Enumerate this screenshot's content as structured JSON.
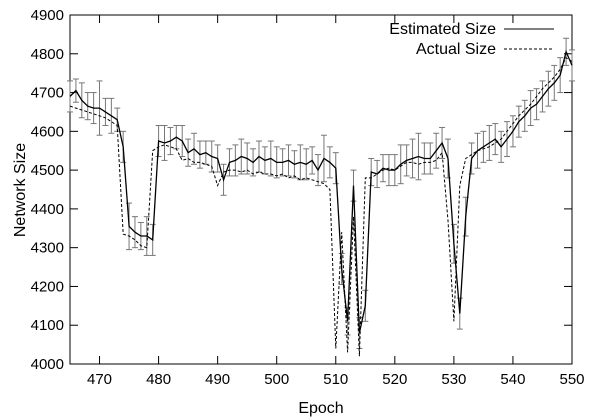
{
  "chart_data": {
    "type": "line",
    "title": "",
    "xlabel": "Epoch",
    "ylabel": "Network Size",
    "xlim": [
      465,
      550
    ],
    "ylim": [
      4000,
      4900
    ],
    "xticks": [
      470,
      480,
      490,
      500,
      510,
      520,
      530,
      540,
      550
    ],
    "yticks": [
      4000,
      4100,
      4200,
      4300,
      4400,
      4500,
      4600,
      4700,
      4800,
      4900
    ],
    "grid": false,
    "legend_position": "top-right",
    "series": [
      {
        "name": "Estimated Size",
        "style": "solid",
        "color": "#000000",
        "error_bars": true,
        "x": [
          465,
          466,
          467,
          468,
          469,
          470,
          471,
          472,
          473,
          474,
          475,
          476,
          477,
          478,
          479,
          480,
          481,
          482,
          483,
          484,
          485,
          486,
          487,
          488,
          489,
          490,
          491,
          492,
          493,
          494,
          495,
          496,
          497,
          498,
          499,
          500,
          501,
          502,
          503,
          504,
          505,
          506,
          507,
          508,
          509,
          510,
          511,
          512,
          513,
          514,
          515,
          516,
          517,
          518,
          519,
          520,
          521,
          522,
          523,
          524,
          525,
          526,
          527,
          528,
          529,
          530,
          531,
          532,
          533,
          534,
          535,
          536,
          537,
          538,
          539,
          540,
          541,
          542,
          543,
          544,
          545,
          546,
          547,
          548,
          549,
          550
        ],
        "y": [
          4690,
          4705,
          4680,
          4665,
          4660,
          4660,
          4650,
          4640,
          4630,
          4560,
          4355,
          4340,
          4330,
          4330,
          4320,
          4575,
          4570,
          4575,
          4585,
          4575,
          4545,
          4555,
          4540,
          4545,
          4535,
          4530,
          4475,
          4520,
          4525,
          4535,
          4530,
          4520,
          4535,
          4525,
          4530,
          4520,
          4520,
          4525,
          4515,
          4520,
          4515,
          4525,
          4500,
          4530,
          4520,
          4505,
          4245,
          4110,
          4460,
          4080,
          4150,
          4495,
          4490,
          4505,
          4500,
          4500,
          4515,
          4525,
          4530,
          4535,
          4530,
          4530,
          4550,
          4570,
          4530,
          4310,
          4130,
          4380,
          4530,
          4550,
          4560,
          4570,
          4580,
          4560,
          4580,
          4600,
          4625,
          4640,
          4660,
          4670,
          4690,
          4710,
          4725,
          4745,
          4805,
          4770
        ],
        "err": [
          40,
          30,
          45,
          35,
          40,
          70,
          35,
          45,
          30,
          40,
          60,
          40,
          35,
          50,
          40,
          40,
          45,
          35,
          30,
          40,
          35,
          40,
          35,
          30,
          40,
          35,
          40,
          35,
          40,
          45,
          40,
          35,
          40,
          35,
          45,
          40,
          35,
          40,
          35,
          45,
          40,
          35,
          40,
          60,
          40,
          40,
          40,
          35,
          40,
          40,
          40,
          35,
          35,
          35,
          40,
          40,
          50,
          40,
          50,
          60,
          40,
          40,
          45,
          40,
          50,
          50,
          40,
          50,
          40,
          45,
          40,
          45,
          40,
          40,
          45,
          40,
          40,
          40,
          45,
          40,
          40,
          45,
          45,
          45,
          35,
          40
        ]
      },
      {
        "name": "Actual Size",
        "style": "dashed",
        "color": "#000000",
        "x": [
          465,
          466,
          467,
          468,
          469,
          470,
          471,
          472,
          473,
          474,
          475,
          476,
          477,
          478,
          479,
          480,
          481,
          482,
          483,
          484,
          485,
          486,
          487,
          488,
          489,
          490,
          491,
          492,
          493,
          494,
          495,
          496,
          497,
          498,
          499,
          500,
          501,
          502,
          503,
          504,
          505,
          506,
          507,
          508,
          509,
          510,
          511,
          512,
          513,
          514,
          515,
          516,
          517,
          518,
          519,
          520,
          521,
          522,
          523,
          524,
          525,
          526,
          527,
          528,
          529,
          530,
          531,
          532,
          533,
          534,
          535,
          536,
          537,
          538,
          539,
          540,
          541,
          542,
          543,
          544,
          545,
          546,
          547,
          548,
          549,
          550
        ],
        "y": [
          4665,
          4660,
          4655,
          4650,
          4645,
          4640,
          4635,
          4625,
          4615,
          4335,
          4330,
          4320,
          4305,
          4300,
          4550,
          4560,
          4565,
          4560,
          4555,
          4525,
          4530,
          4520,
          4520,
          4515,
          4510,
          4460,
          4495,
          4500,
          4500,
          4495,
          4500,
          4490,
          4495,
          4490,
          4490,
          4485,
          4490,
          4480,
          4485,
          4475,
          4480,
          4475,
          4470,
          4465,
          4450,
          4040,
          4340,
          4030,
          4380,
          4020,
          4480,
          4480,
          4490,
          4500,
          4505,
          4500,
          4510,
          4520,
          4520,
          4515,
          4520,
          4520,
          4525,
          4545,
          4370,
          4110,
          4460,
          4530,
          4540,
          4550,
          4555,
          4560,
          4570,
          4580,
          4600,
          4620,
          4640,
          4655,
          4670,
          4690,
          4710,
          4725,
          4740,
          4760,
          4790,
          4780
        ]
      }
    ]
  }
}
